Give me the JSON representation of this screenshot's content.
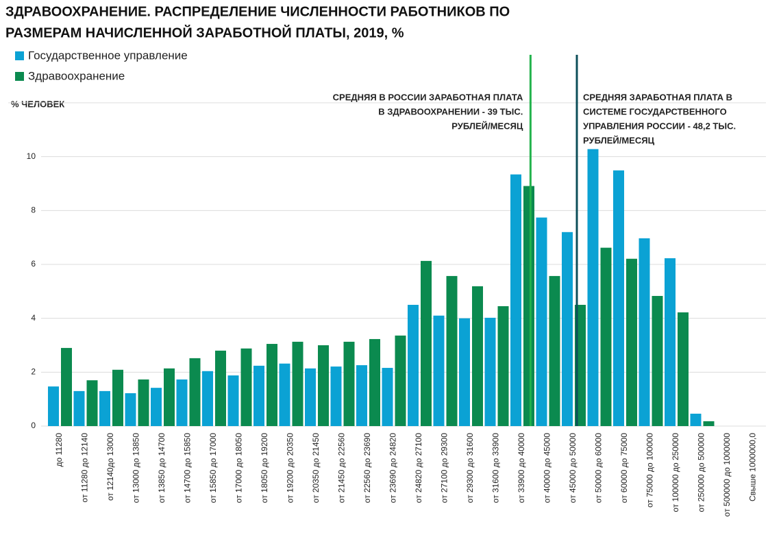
{
  "chart_data": {
    "type": "bar",
    "title": [
      "ЗДРАВООХРАНЕНИЕ. РАСПРЕДЕЛЕНИЕ ЧИСЛЕННОСТИ РАБОТНИКОВ ПО",
      "РАЗМЕРАМ НАЧИСЛЕННОЙ ЗАРАБОТНОЙ ПЛАТЫ, 2019, %"
    ],
    "y_label": "% ЧЕЛОВЕК",
    "categories": [
      "до  11280",
      "от 11280 до 12140",
      "от 12140до 13000",
      "от 13000 до 13850",
      "от 13850 до 14700",
      "от 14700 до 15850",
      "от 15850 до 17000",
      "от 17000  до 18050",
      "от 18050 до 19200",
      "от 19200 до 20350",
      "от 20350 до 21450",
      "от 21450 до 22560",
      "от 22560 до 23690",
      "от 23690 до 24820",
      "от 24820 до 27100",
      "от 27100 до 29300",
      "от 29300 до 31600",
      "от 31600 до 33900",
      "от 33900 до 40000",
      "от 40000 до 45000",
      "от 45000 до 50000",
      "от 50000 до 60000",
      "от 60000 до 75000",
      "от 75000 до 100000",
      "от 100000 до 250000",
      "от 250000 до 500000",
      "от 500000 до 1000000",
      "Свыше 1000000,0"
    ],
    "series": [
      {
        "name": "Государственное управление",
        "color": "#0ba2d4",
        "values": [
          1.47,
          1.3,
          1.3,
          1.22,
          1.42,
          1.73,
          2.04,
          1.88,
          2.24,
          2.32,
          2.14,
          2.21,
          2.26,
          2.16,
          4.5,
          4.1,
          4.0,
          4.02,
          9.34,
          7.74,
          7.2,
          10.28,
          9.49,
          6.97,
          6.23,
          0.46,
          0,
          0
        ]
      },
      {
        "name": "Здравоохранение",
        "color": "#0b8a4f",
        "values": [
          2.9,
          1.7,
          2.09,
          1.73,
          2.14,
          2.52,
          2.8,
          2.88,
          3.05,
          3.13,
          3.0,
          3.13,
          3.23,
          3.36,
          6.13,
          5.57,
          5.19,
          4.45,
          8.91,
          5.57,
          4.5,
          6.62,
          6.21,
          4.83,
          4.22,
          0.18,
          0,
          0
        ]
      }
    ],
    "ylim": [
      0,
      12
    ],
    "yticks": [
      0,
      2,
      4,
      6,
      8,
      10
    ],
    "grid": true,
    "annotations": [
      {
        "value": 39000,
        "color": "#22b24c",
        "align": "right",
        "text": [
          "СРЕДНЯЯ В РОССИИ ЗАРАБОТНАЯ ПЛАТА",
          "В ЗДРАВООХРАНЕНИИ - 39 ТЫС.",
          "РУБЛЕЙ/МЕСЯЦ"
        ]
      },
      {
        "value": 48200,
        "color": "#0d4f5a",
        "align": "left",
        "text": [
          "СРЕДНЯЯ ЗАРАБОТНАЯ ПЛАТА В",
          "СИСТЕМЕ ГОСУДАРСТВЕННОГО",
          "УПРАВЛЕНИЯ РОССИИ - 48,2 ТЫС.",
          "РУБЛЕЙ/МЕСЯЦ"
        ]
      }
    ]
  }
}
